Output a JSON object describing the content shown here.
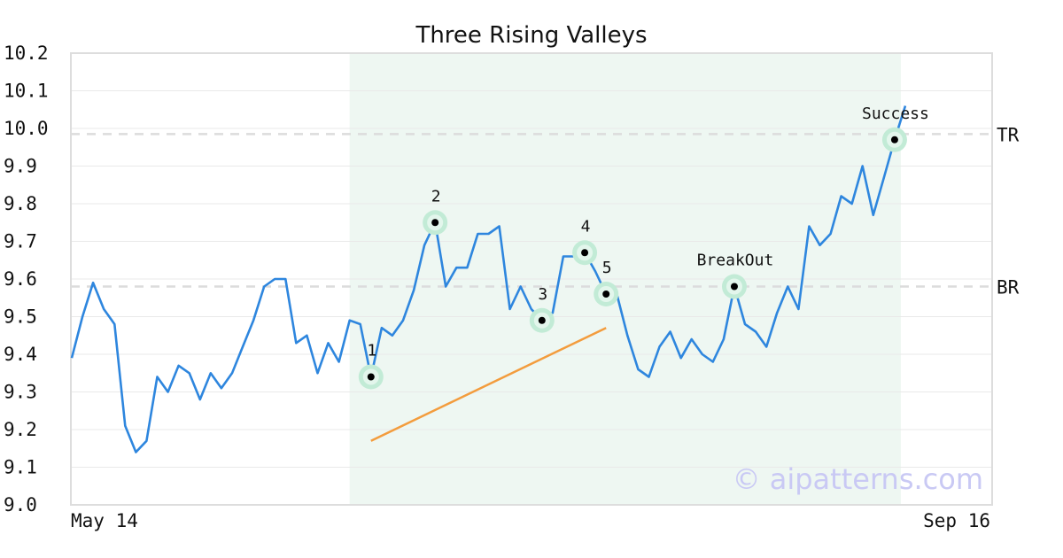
{
  "chart_data": {
    "type": "line",
    "title": "Three Rising Valleys",
    "ylim": [
      9.0,
      10.2
    ],
    "y_ticks": [
      "10.2",
      "10.1",
      "10.0",
      "9.9",
      "9.8",
      "9.7",
      "9.6",
      "9.5",
      "9.4",
      "9.3",
      "9.2",
      "9.1",
      "9.0"
    ],
    "x_labels": {
      "start": "May 14",
      "end": "Sep 16"
    },
    "grid": true,
    "series": [
      {
        "color": "#2e86de",
        "values": [
          9.39,
          9.5,
          9.59,
          9.52,
          9.48,
          9.21,
          9.14,
          9.17,
          9.34,
          9.3,
          9.37,
          9.35,
          9.28,
          9.35,
          9.31,
          9.35,
          9.42,
          9.49,
          9.58,
          9.6,
          9.6,
          9.43,
          9.45,
          9.35,
          9.43,
          9.38,
          9.49,
          9.48,
          9.34,
          9.47,
          9.45,
          9.49,
          9.57,
          9.69,
          9.75,
          9.58,
          9.63,
          9.63,
          9.72,
          9.72,
          9.74,
          9.52,
          9.58,
          9.52,
          9.49,
          9.51,
          9.66,
          9.66,
          9.67,
          9.62,
          9.56,
          9.56,
          9.45,
          9.36,
          9.34,
          9.42,
          9.46,
          9.39,
          9.44,
          9.4,
          9.38,
          9.44,
          9.58,
          9.48,
          9.46,
          9.42,
          9.51,
          9.58,
          9.52,
          9.74,
          9.69,
          9.72,
          9.82,
          9.8,
          9.9,
          9.77,
          9.87,
          9.97,
          10.06
        ]
      }
    ],
    "highlight_region": {
      "start_index": 26,
      "end_index": 77,
      "color": "#eef7f2"
    },
    "levels": [
      {
        "label": "TR",
        "value": 9.985
      },
      {
        "label": "BR",
        "value": 9.58
      }
    ],
    "trendline": {
      "from": {
        "index": 28,
        "value": 9.17
      },
      "to": {
        "index": 50,
        "value": 9.47
      },
      "color": "#f39c3d"
    },
    "points": [
      {
        "label": "1",
        "index": 28,
        "value": 9.34
      },
      {
        "label": "2",
        "index": 34,
        "value": 9.75
      },
      {
        "label": "3",
        "index": 44,
        "value": 9.49
      },
      {
        "label": "4",
        "index": 48,
        "value": 9.67
      },
      {
        "label": "5",
        "index": 50,
        "value": 9.56
      },
      {
        "label": "BreakOut",
        "index": 62,
        "value": 9.58
      },
      {
        "label": "Success",
        "index": 77,
        "value": 9.97
      }
    ],
    "watermark": "© aipatterns.com"
  }
}
